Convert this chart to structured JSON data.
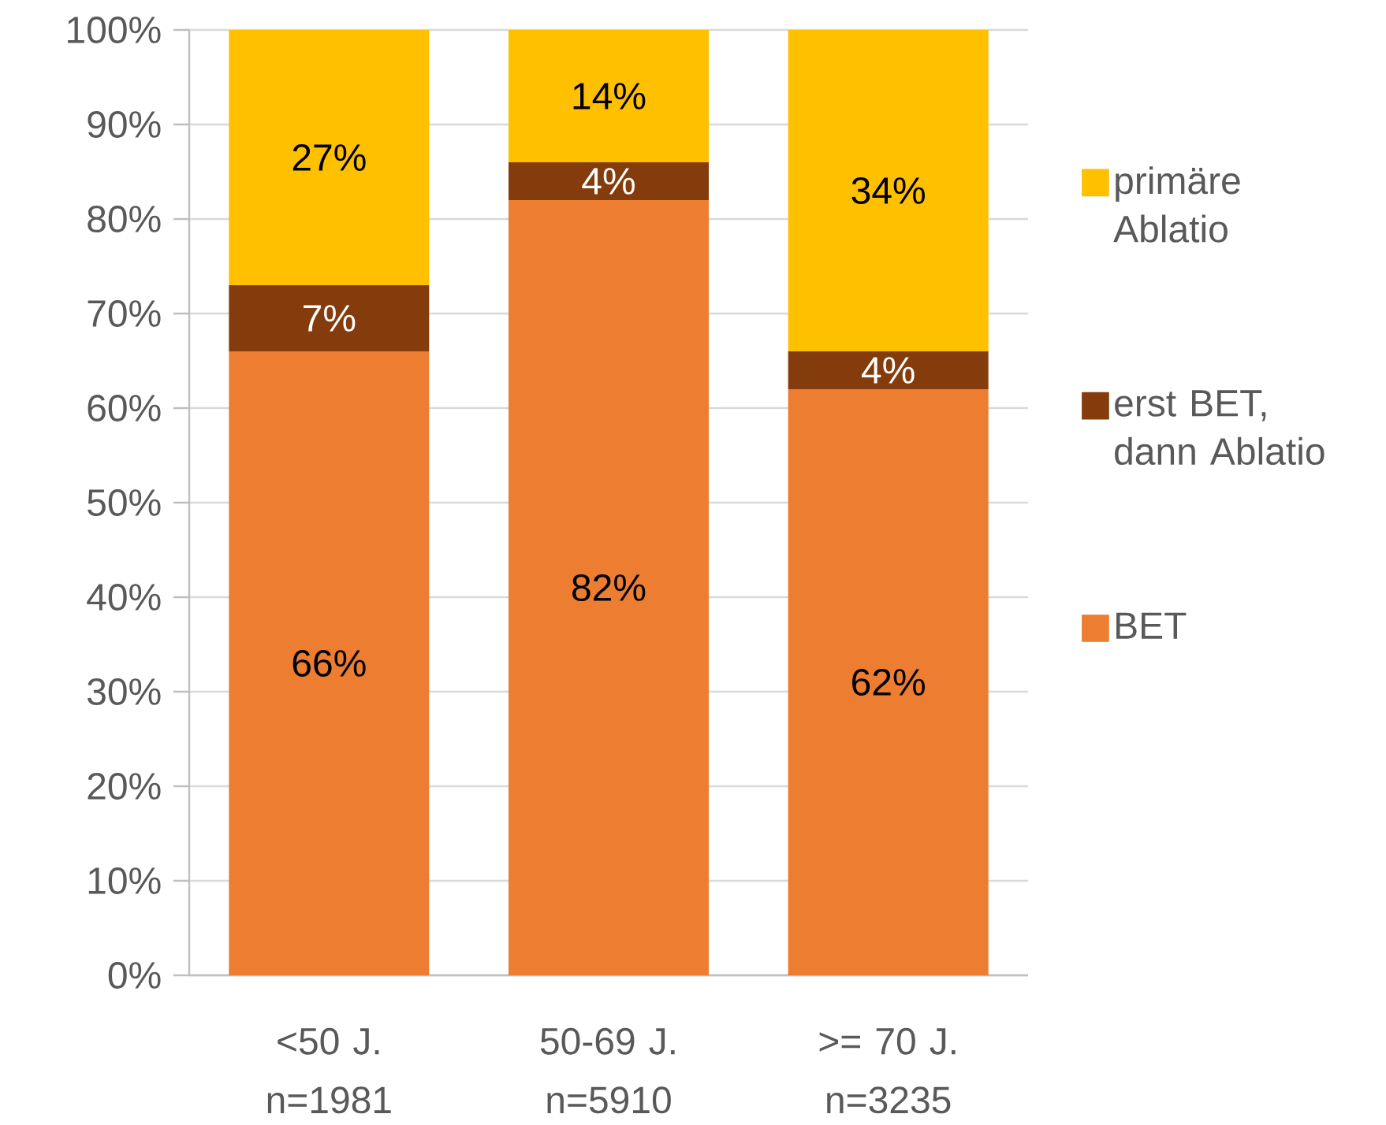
{
  "chart_data": {
    "type": "bar",
    "stacked": true,
    "categories": [
      "<50 J. n=1981",
      "50-69 J. n=5910",
      ">= 70 J. n=3235"
    ],
    "series": [
      {
        "name": "BET",
        "color": "#ed7d31",
        "values": [
          66,
          82,
          62
        ],
        "value_labels": [
          "66%",
          "82%",
          "62%"
        ]
      },
      {
        "name": "erst BET, dann Ablatio",
        "color": "#843c0c",
        "values": [
          7,
          4,
          4
        ],
        "value_labels": [
          "7%",
          "4%",
          "4%"
        ]
      },
      {
        "name": "primäre Ablatio",
        "color": "#ffc000",
        "values": [
          27,
          14,
          34
        ],
        "value_labels": [
          "27%",
          "14%",
          "34%"
        ]
      }
    ],
    "ylim": [
      0,
      100
    ],
    "yticks": [
      {
        "value": 0,
        "label": "0%"
      },
      {
        "value": 10,
        "label": "10%"
      },
      {
        "value": 20,
        "label": "20%"
      },
      {
        "value": 30,
        "label": "30%"
      },
      {
        "value": 40,
        "label": "40%"
      },
      {
        "value": 50,
        "label": "50%"
      },
      {
        "value": 60,
        "label": "60%"
      },
      {
        "value": 70,
        "label": "70%"
      },
      {
        "value": 80,
        "label": "80%"
      },
      {
        "value": 90,
        "label": "90%"
      },
      {
        "value": 100,
        "label": "100%"
      }
    ],
    "grid": "y",
    "legend": "right"
  }
}
